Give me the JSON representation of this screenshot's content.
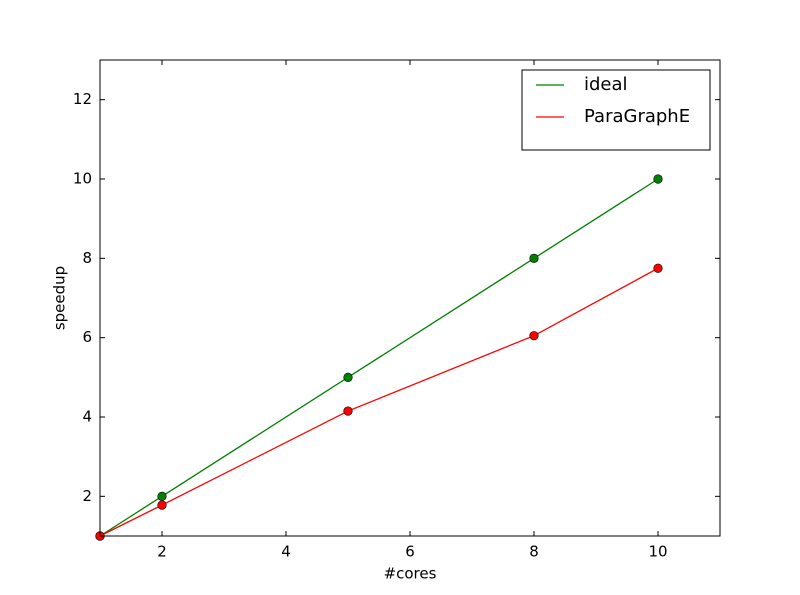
{
  "chart_data": {
    "type": "line",
    "x_label": "#cores",
    "y_label": "speedup",
    "x": [
      1,
      2,
      5,
      8,
      10
    ],
    "series": [
      {
        "name": "ideal",
        "color": "#008000",
        "values": [
          1,
          2,
          5,
          8,
          10
        ]
      },
      {
        "name": "ParaGraphE",
        "color": "#ff0000",
        "values": [
          1,
          1.78,
          4.15,
          6.05,
          7.75
        ]
      }
    ],
    "xlim": [
      1,
      11
    ],
    "xticks": [
      2,
      4,
      6,
      8,
      10
    ],
    "ylim": [
      1,
      13
    ],
    "yticks": [
      2,
      4,
      6,
      8,
      10,
      12
    ],
    "grid": false,
    "legend": "upper right",
    "markers": true
  }
}
